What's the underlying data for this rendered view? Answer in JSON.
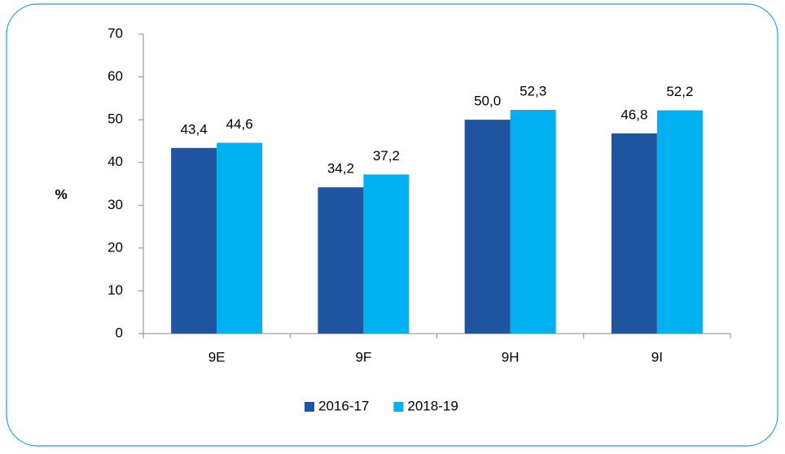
{
  "chart_data": {
    "type": "bar",
    "y_label": "%",
    "categories": [
      "9E",
      "9F",
      "9H",
      "9I"
    ],
    "series": [
      {
        "name": "2016-17",
        "color": "#1f55a0",
        "values": [
          43.4,
          34.2,
          50.0,
          46.8
        ],
        "value_labels": [
          "43,4",
          "34,2",
          "50,0",
          "46,8"
        ]
      },
      {
        "name": "2018-19",
        "color": "#00b0f0",
        "values": [
          44.6,
          37.2,
          52.3,
          52.2
        ],
        "value_labels": [
          "44,6",
          "37,2",
          "52,3",
          "52,2"
        ]
      }
    ],
    "ylim": [
      0,
      70
    ],
    "yticks": [
      0,
      10,
      20,
      30,
      40,
      50,
      60,
      70
    ],
    "grid": false,
    "legend": "bottom"
  }
}
